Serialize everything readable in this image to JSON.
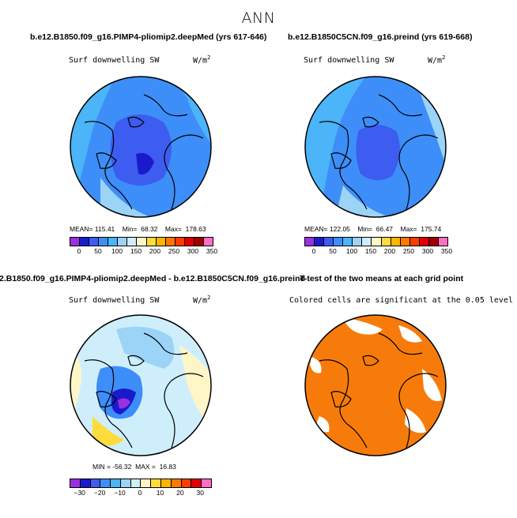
{
  "chart_data": {
    "type": "heatmap",
    "title": "ANN",
    "panels": [
      {
        "id": "model1",
        "title": "b.e12.B1850.f09_g16.PIMP4-pliomip2.deepMed (yrs 617-646)",
        "variable": "Surf downwelling SW",
        "units_base": "W/m",
        "units_exp": "2",
        "projection": "polar stereographic, north pole",
        "stats": {
          "mean_label": "MEAN=",
          "mean": "115.41",
          "min_label": "Min=",
          "min": "68.32",
          "max_label": "Max=",
          "max": "178.63"
        },
        "colorbar_ticks": [
          "0",
          "50",
          "100",
          "150",
          "200",
          "250",
          "300",
          "350"
        ],
        "colorbar_colors": [
          "#9b30e0",
          "#1a1acd",
          "#3d5cf0",
          "#3d8ef8",
          "#4cb4f8",
          "#9cd4f8",
          "#cfeefc",
          "#fff6c8",
          "#ffdc3c",
          "#ffb400",
          "#ff7800",
          "#ff3c00",
          "#e00000",
          "#a00000",
          "#ff6ec4"
        ]
      },
      {
        "id": "model2",
        "title": "b.e12.B1850C5CN.f09_g16.preind (yrs 619-668)",
        "variable": "Surf downwelling SW",
        "units_base": "W/m",
        "units_exp": "2",
        "projection": "polar stereographic, north pole",
        "stats": {
          "mean_label": "MEAN=",
          "mean": "122.05",
          "min_label": "Min=",
          "min": "66.47",
          "max_label": "Max=",
          "max": "175.74"
        },
        "colorbar_ticks": [
          "0",
          "50",
          "100",
          "150",
          "200",
          "250",
          "300",
          "350"
        ],
        "colorbar_colors": [
          "#9b30e0",
          "#1a1acd",
          "#3d5cf0",
          "#3d8ef8",
          "#4cb4f8",
          "#9cd4f8",
          "#cfeefc",
          "#fff6c8",
          "#ffdc3c",
          "#ffb400",
          "#ff7800",
          "#ff3c00",
          "#e00000",
          "#a00000",
          "#ff6ec4"
        ]
      },
      {
        "id": "difference",
        "title": "2.B1850.f09_g16.PIMP4-pliomip2.deepMed - b.e12.B1850C5CN.f09_g16.preind",
        "variable": "Surf downwelling SW",
        "units_base": "W/m",
        "units_exp": "2",
        "projection": "polar stereographic, north pole",
        "stats": {
          "min_label": "MIN =",
          "min": "-56.32",
          "max_label": "MAX =",
          "max": "16.83"
        },
        "colorbar_ticks": [
          "−30",
          "−20",
          "−10",
          "0",
          "10",
          "20",
          "30"
        ],
        "colorbar_colors": [
          "#9b30e0",
          "#1a1acd",
          "#3d5cf0",
          "#3d8ef8",
          "#4cb4f8",
          "#9cd4f8",
          "#cfeefc",
          "#fff6c8",
          "#ffdc3c",
          "#ffb400",
          "#ff7800",
          "#ff3c00",
          "#e00000",
          "#ff6ec4"
        ]
      },
      {
        "id": "ttest",
        "title": "T-test of the two means at each grid point",
        "note": "Colored cells are significant at the 0.05 level",
        "significant_color": "#f77b0a",
        "significant_fraction_estimate": 0.85
      }
    ]
  }
}
